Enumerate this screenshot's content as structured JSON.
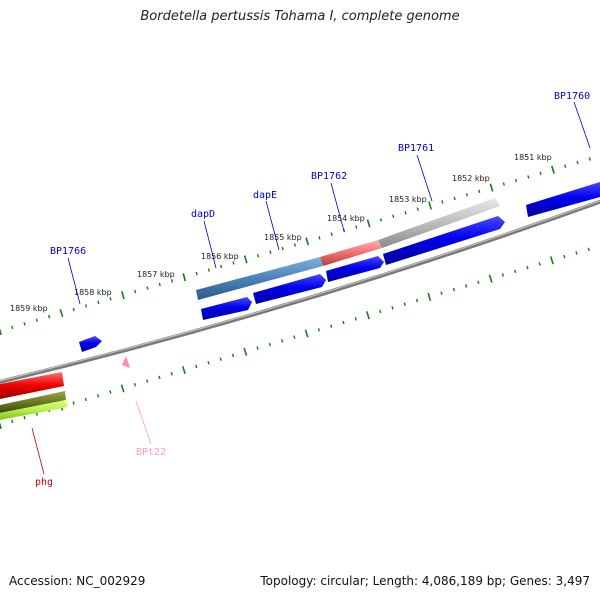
{
  "title": "Bordetella pertussis Tohama I, complete genome",
  "footer": {
    "accession": "Accession: NC_002929",
    "summary": "Topology: circular; Length: 4,086,189 bp; Genes: 3,497"
  },
  "colors": {
    "backbone": "#808080",
    "tick": "#1a7a1a",
    "cds": "#0000ee",
    "rna": "#ff88bb",
    "label_blue": "#0000cc",
    "label_red": "#cc0000",
    "label_pink": "#ff88bb"
  },
  "kbp_labels": [
    "1859 kbp",
    "1858 kbp",
    "1857 kbp",
    "1856 kbp",
    "1855 kbp",
    "1854 kbp",
    "1853 kbp",
    "1852 kbp",
    "1851 kbp"
  ],
  "gene_labels": [
    {
      "text": "BP1766",
      "color": "#0000cc"
    },
    {
      "text": "dapD",
      "color": "#0000cc"
    },
    {
      "text": "dapE",
      "color": "#0000cc"
    },
    {
      "text": "BP1762",
      "color": "#0000cc"
    },
    {
      "text": "BP1761",
      "color": "#0000cc"
    },
    {
      "text": "BP1760",
      "color": "#0000cc"
    },
    {
      "text": "BPt22",
      "color": "#ff99cc"
    },
    {
      "text": "phg",
      "color": "#cc0000"
    }
  ]
}
